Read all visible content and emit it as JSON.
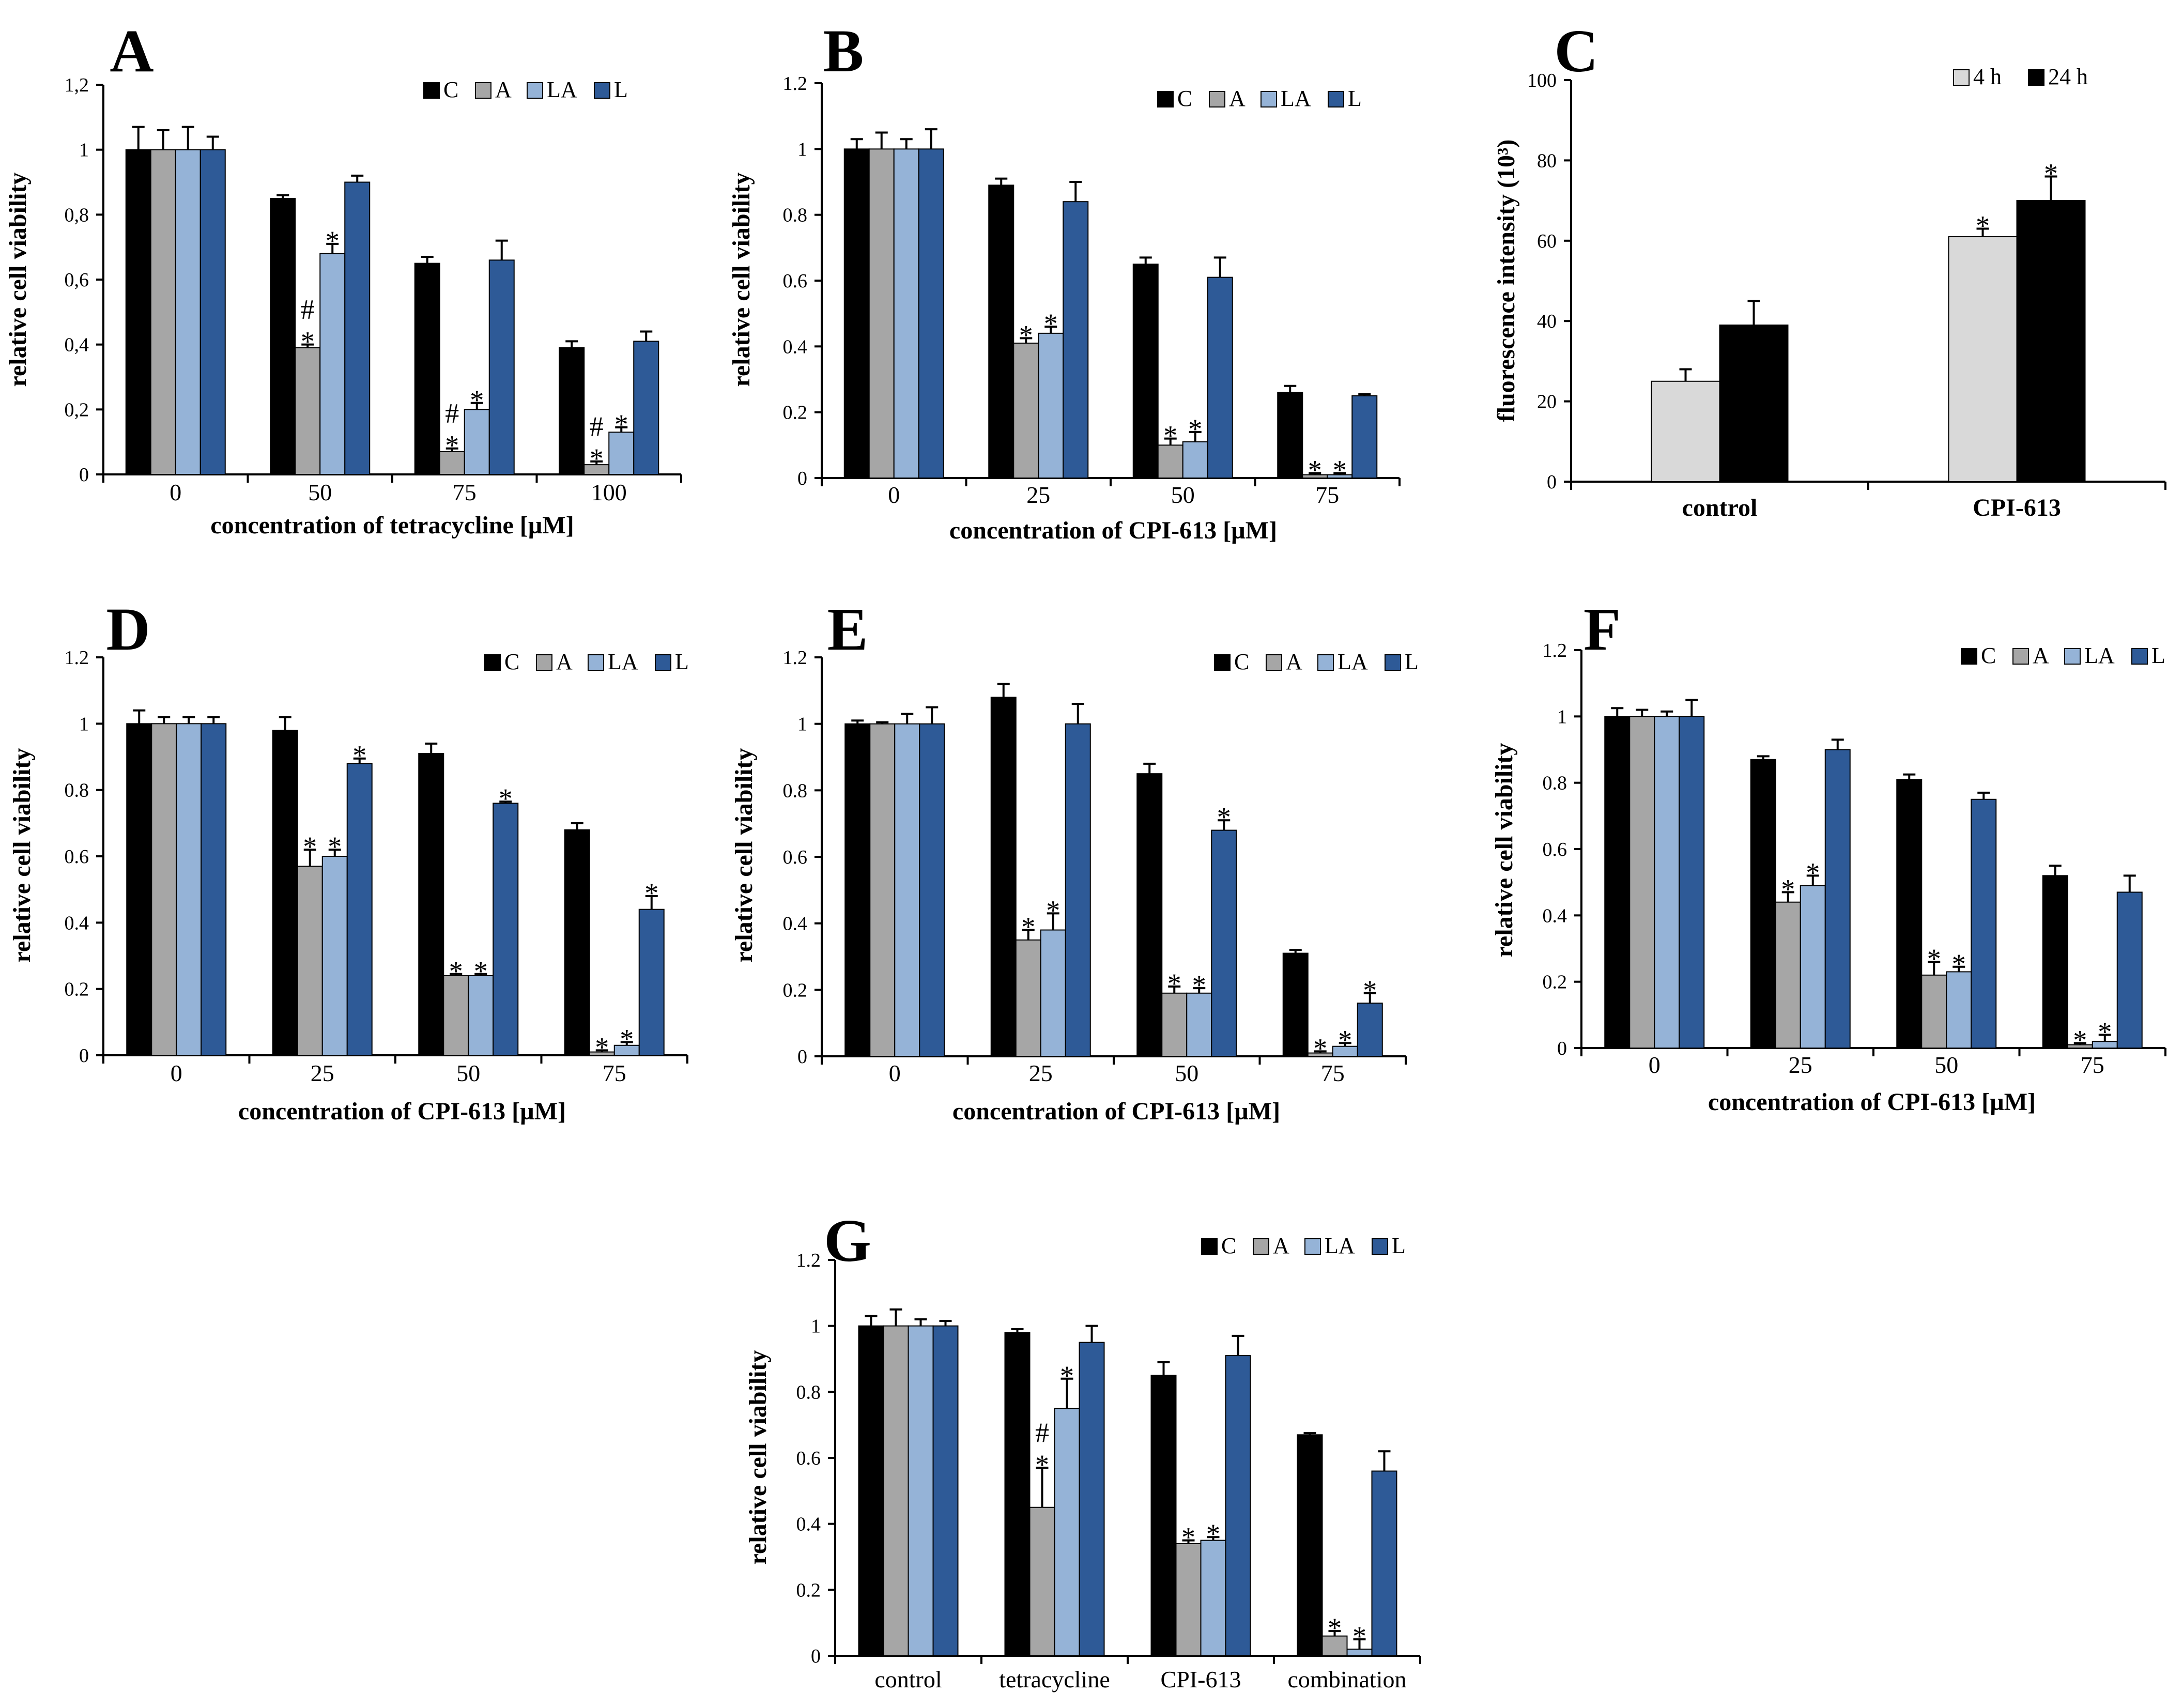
{
  "colors": {
    "C": "#000000",
    "A": "#a6a6a6",
    "LA": "#95b3d7",
    "L": "#2e5a97",
    "4h": "#d9d9d9",
    "24h": "#000000"
  },
  "chart_data": [
    {
      "id": "A",
      "letter": "A",
      "type": "bar",
      "categories": [
        "0",
        "50",
        "75",
        "100"
      ],
      "xlabel": "concentration of tetracycline [µM]",
      "ylabel": "relative cell viability",
      "ylim": [
        0,
        1.2
      ],
      "ticks": [
        "0",
        "0,2",
        "0,4",
        "0,6",
        "0,8",
        "1",
        "1,2"
      ],
      "legend": [
        "C",
        "A",
        "LA",
        "L"
      ],
      "series": [
        {
          "name": "C",
          "values": [
            1.0,
            0.85,
            0.65,
            0.39
          ],
          "err": [
            0.07,
            0.01,
            0.02,
            0.02
          ],
          "marks": [
            "",
            "",
            "",
            ""
          ]
        },
        {
          "name": "A",
          "values": [
            1.0,
            0.39,
            0.07,
            0.03
          ],
          "err": [
            0.06,
            0.01,
            0.01,
            0.01
          ],
          "marks": [
            "",
            "#\n*",
            "#\n*",
            "#\n*"
          ]
        },
        {
          "name": "LA",
          "values": [
            1.0,
            0.68,
            0.2,
            0.13
          ],
          "err": [
            0.07,
            0.03,
            0.02,
            0.015
          ],
          "marks": [
            "",
            "*",
            "*",
            "*"
          ]
        },
        {
          "name": "L",
          "values": [
            1.0,
            0.9,
            0.66,
            0.41
          ],
          "err": [
            0.04,
            0.02,
            0.06,
            0.03
          ],
          "marks": [
            "",
            "",
            "",
            ""
          ]
        }
      ]
    },
    {
      "id": "B",
      "letter": "B",
      "type": "bar",
      "categories": [
        "0",
        "25",
        "50",
        "75"
      ],
      "xlabel": "concentration of CPI-613 [µM]",
      "ylabel": "relative cell viability",
      "ylim": [
        0,
        1.2
      ],
      "ticks": [
        "0",
        "0.2",
        "0.4",
        "0.6",
        "0.8",
        "1",
        "1.2"
      ],
      "legend": [
        "C",
        "A",
        "LA",
        "L"
      ],
      "series": [
        {
          "name": "C",
          "values": [
            1.0,
            0.89,
            0.65,
            0.26
          ],
          "err": [
            0.03,
            0.02,
            0.02,
            0.02
          ],
          "marks": [
            "",
            "",
            "",
            ""
          ]
        },
        {
          "name": "A",
          "values": [
            1.0,
            0.41,
            0.1,
            0.01
          ],
          "err": [
            0.05,
            0.015,
            0.02,
            0.005
          ],
          "marks": [
            "",
            "*",
            "*",
            "*"
          ]
        },
        {
          "name": "LA",
          "values": [
            1.0,
            0.44,
            0.11,
            0.01
          ],
          "err": [
            0.03,
            0.02,
            0.03,
            0.005
          ],
          "marks": [
            "",
            "*",
            "*",
            "*"
          ]
        },
        {
          "name": "L",
          "values": [
            1.0,
            0.84,
            0.61,
            0.25
          ],
          "err": [
            0.06,
            0.06,
            0.06,
            0.005
          ],
          "marks": [
            "",
            "",
            "",
            ""
          ]
        }
      ]
    },
    {
      "id": "C",
      "letter": "C",
      "type": "bar",
      "categories": [
        "control",
        "CPI-613"
      ],
      "xlabel": "",
      "ylabel": "fluorescence intensity (10³)",
      "ylim": [
        0,
        100
      ],
      "ticks": [
        "0",
        "20",
        "40",
        "60",
        "80",
        "100"
      ],
      "legend": [
        "4 h",
        "24 h"
      ],
      "series": [
        {
          "name": "4 h",
          "values": [
            25,
            61
          ],
          "err": [
            3,
            2
          ],
          "marks": [
            "",
            "*"
          ]
        },
        {
          "name": "24 h",
          "values": [
            39,
            70
          ],
          "err": [
            6,
            6
          ],
          "marks": [
            "",
            "*"
          ]
        }
      ]
    },
    {
      "id": "D",
      "letter": "D",
      "type": "bar",
      "categories": [
        "0",
        "25",
        "50",
        "75"
      ],
      "xlabel": "concentration of CPI-613 [µM]",
      "ylabel": "relative cell viability",
      "ylim": [
        0,
        1.2
      ],
      "ticks": [
        "0",
        "0.2",
        "0.4",
        "0.6",
        "0.8",
        "1",
        "1.2"
      ],
      "legend": [
        "C",
        "A",
        "LA",
        "L"
      ],
      "series": [
        {
          "name": "C",
          "values": [
            1.0,
            0.98,
            0.91,
            0.68
          ],
          "err": [
            0.04,
            0.04,
            0.03,
            0.02
          ],
          "marks": [
            "",
            "",
            "",
            ""
          ]
        },
        {
          "name": "A",
          "values": [
            1.0,
            0.57,
            0.24,
            0.01
          ],
          "err": [
            0.02,
            0.05,
            0.005,
            0.005
          ],
          "marks": [
            "",
            "*",
            "*",
            "*"
          ]
        },
        {
          "name": "LA",
          "values": [
            1.0,
            0.6,
            0.24,
            0.03
          ],
          "err": [
            0.02,
            0.02,
            0.005,
            0.01
          ],
          "marks": [
            "",
            "*",
            "*",
            "*"
          ]
        },
        {
          "name": "L",
          "values": [
            1.0,
            0.88,
            0.76,
            0.44
          ],
          "err": [
            0.02,
            0.015,
            0.005,
            0.04
          ],
          "marks": [
            "",
            "*",
            "*",
            "*"
          ]
        }
      ]
    },
    {
      "id": "E",
      "letter": "E",
      "type": "bar",
      "categories": [
        "0",
        "25",
        "50",
        "75"
      ],
      "xlabel": "concentration of CPI-613 [µM]",
      "ylabel": "relative cell viability",
      "ylim": [
        0,
        1.2
      ],
      "ticks": [
        "0",
        "0.2",
        "0.4",
        "0.6",
        "0.8",
        "1",
        "1.2"
      ],
      "legend": [
        "C",
        "A",
        "LA",
        "L"
      ],
      "series": [
        {
          "name": "C",
          "values": [
            1.0,
            1.08,
            0.85,
            0.31
          ],
          "err": [
            0.01,
            0.04,
            0.03,
            0.01
          ],
          "marks": [
            "",
            "",
            "",
            ""
          ]
        },
        {
          "name": "A",
          "values": [
            1.0,
            0.35,
            0.19,
            0.01
          ],
          "err": [
            0.005,
            0.03,
            0.02,
            0.005
          ],
          "marks": [
            "",
            "*",
            "*",
            "*"
          ]
        },
        {
          "name": "LA",
          "values": [
            1.0,
            0.38,
            0.19,
            0.03
          ],
          "err": [
            0.03,
            0.05,
            0.015,
            0.01
          ],
          "marks": [
            "",
            "*",
            "*",
            "*"
          ]
        },
        {
          "name": "L",
          "values": [
            1.0,
            1.0,
            0.68,
            0.16
          ],
          "err": [
            0.05,
            0.06,
            0.03,
            0.03
          ],
          "marks": [
            "",
            "",
            "*",
            "*"
          ]
        }
      ]
    },
    {
      "id": "F",
      "letter": "F",
      "type": "bar",
      "categories": [
        "0",
        "25",
        "50",
        "75"
      ],
      "xlabel": "concentration of CPI-613 [µM]",
      "ylabel": "relative cell viability",
      "ylim": [
        0,
        1.2
      ],
      "ticks": [
        "0",
        "0.2",
        "0.4",
        "0.6",
        "0.8",
        "1",
        "1.2"
      ],
      "legend": [
        "C",
        "A",
        "LA",
        "L"
      ],
      "series": [
        {
          "name": "C",
          "values": [
            1.0,
            0.87,
            0.81,
            0.52
          ],
          "err": [
            0.025,
            0.01,
            0.015,
            0.03
          ],
          "marks": [
            "",
            "",
            "",
            ""
          ]
        },
        {
          "name": "A",
          "values": [
            1.0,
            0.44,
            0.22,
            0.01
          ],
          "err": [
            0.02,
            0.03,
            0.04,
            0.005
          ],
          "marks": [
            "",
            "*",
            "*",
            "*"
          ]
        },
        {
          "name": "LA",
          "values": [
            1.0,
            0.49,
            0.23,
            0.02
          ],
          "err": [
            0.015,
            0.03,
            0.015,
            0.02
          ],
          "marks": [
            "",
            "*",
            "*",
            "*"
          ]
        },
        {
          "name": "L",
          "values": [
            1.0,
            0.9,
            0.75,
            0.47
          ],
          "err": [
            0.05,
            0.03,
            0.02,
            0.05
          ],
          "marks": [
            "",
            "",
            "",
            ""
          ]
        }
      ]
    },
    {
      "id": "G",
      "letter": "G",
      "type": "bar",
      "categories": [
        "control",
        "tetracycline",
        "CPI-613",
        "combination"
      ],
      "xlabel": "",
      "ylabel": "relative cell viability",
      "ylim": [
        0,
        1.2
      ],
      "ticks": [
        "0",
        "0.2",
        "0.4",
        "0.6",
        "0.8",
        "1",
        "1.2"
      ],
      "legend": [
        "C",
        "A",
        "LA",
        "L"
      ],
      "series": [
        {
          "name": "C",
          "values": [
            1.0,
            0.98,
            0.85,
            0.67
          ],
          "err": [
            0.03,
            0.01,
            0.04,
            0.005
          ],
          "marks": [
            "",
            "",
            "",
            ""
          ]
        },
        {
          "name": "A",
          "values": [
            1.0,
            0.45,
            0.34,
            0.06
          ],
          "err": [
            0.05,
            0.12,
            0.01,
            0.015
          ],
          "marks": [
            "",
            "#\n*",
            "*",
            "*"
          ]
        },
        {
          "name": "LA",
          "values": [
            1.0,
            0.75,
            0.35,
            0.02
          ],
          "err": [
            0.02,
            0.09,
            0.01,
            0.03
          ],
          "marks": [
            "",
            "*",
            "*",
            "*"
          ]
        },
        {
          "name": "L",
          "values": [
            1.0,
            0.95,
            0.91,
            0.56
          ],
          "err": [
            0.015,
            0.05,
            0.06,
            0.06
          ],
          "marks": [
            "",
            "",
            "",
            ""
          ]
        }
      ]
    }
  ]
}
